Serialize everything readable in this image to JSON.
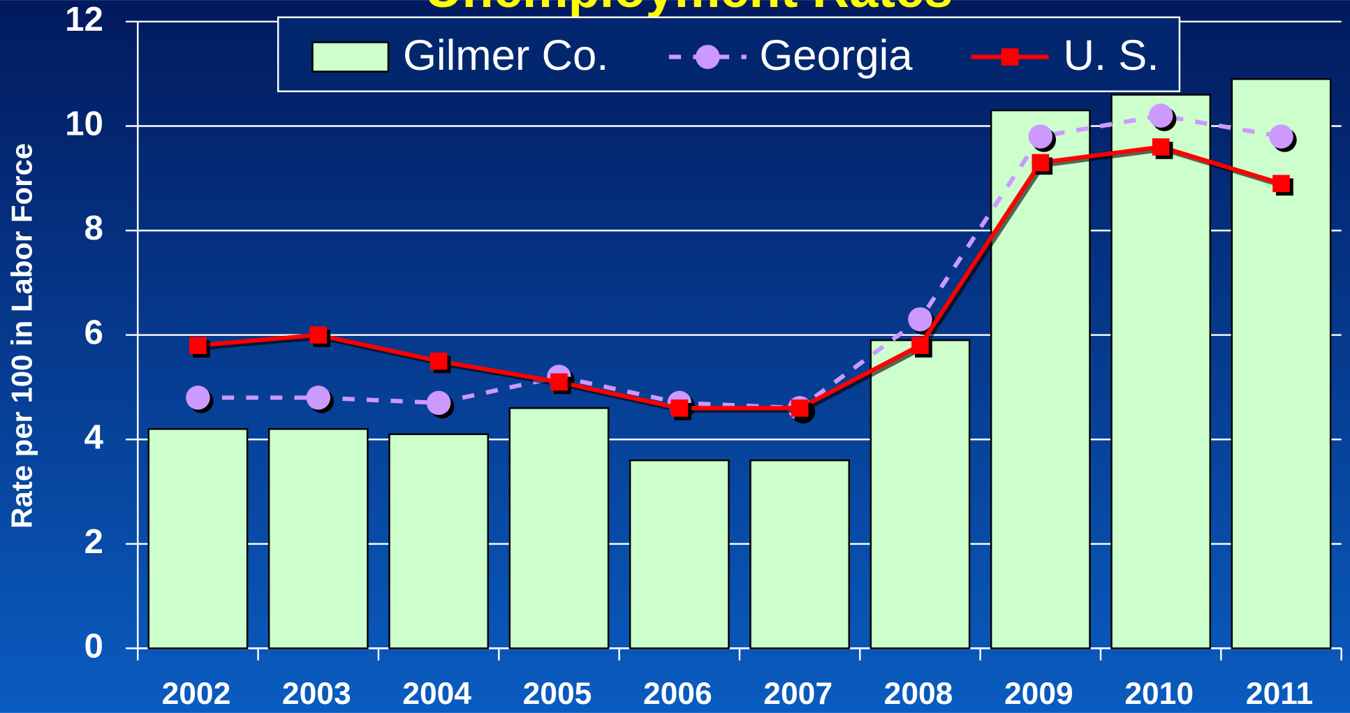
{
  "chart_data": {
    "type": "bar_line",
    "title": "Unemployment Rates",
    "y_label": "Rate per 100 in Labor Force",
    "categories": [
      "2002",
      "2003",
      "2004",
      "2005",
      "2006",
      "2007",
      "2008",
      "2009",
      "2010",
      "2011"
    ],
    "series": [
      {
        "name": "Gilmer Co.",
        "type": "bar",
        "color": "#ccffcc",
        "values": [
          4.2,
          4.2,
          4.1,
          4.6,
          3.6,
          3.6,
          5.9,
          10.3,
          10.6,
          10.9
        ]
      },
      {
        "name": "Georgia",
        "type": "line",
        "style": "dashed",
        "marker": "circle",
        "color": "#cc99ff",
        "values": [
          4.8,
          4.8,
          4.7,
          5.2,
          4.7,
          4.6,
          6.3,
          9.8,
          10.2,
          9.8
        ]
      },
      {
        "name": "U. S.",
        "type": "line",
        "style": "solid",
        "marker": "square",
        "color": "#ff0000",
        "values": [
          5.8,
          6.0,
          5.5,
          5.1,
          4.6,
          4.6,
          5.8,
          9.3,
          9.6,
          8.9
        ]
      }
    ],
    "ylim": [
      0,
      12
    ],
    "yticks": [
      0,
      2,
      4,
      6,
      8,
      10,
      12
    ],
    "grid": true,
    "legend": "top"
  }
}
